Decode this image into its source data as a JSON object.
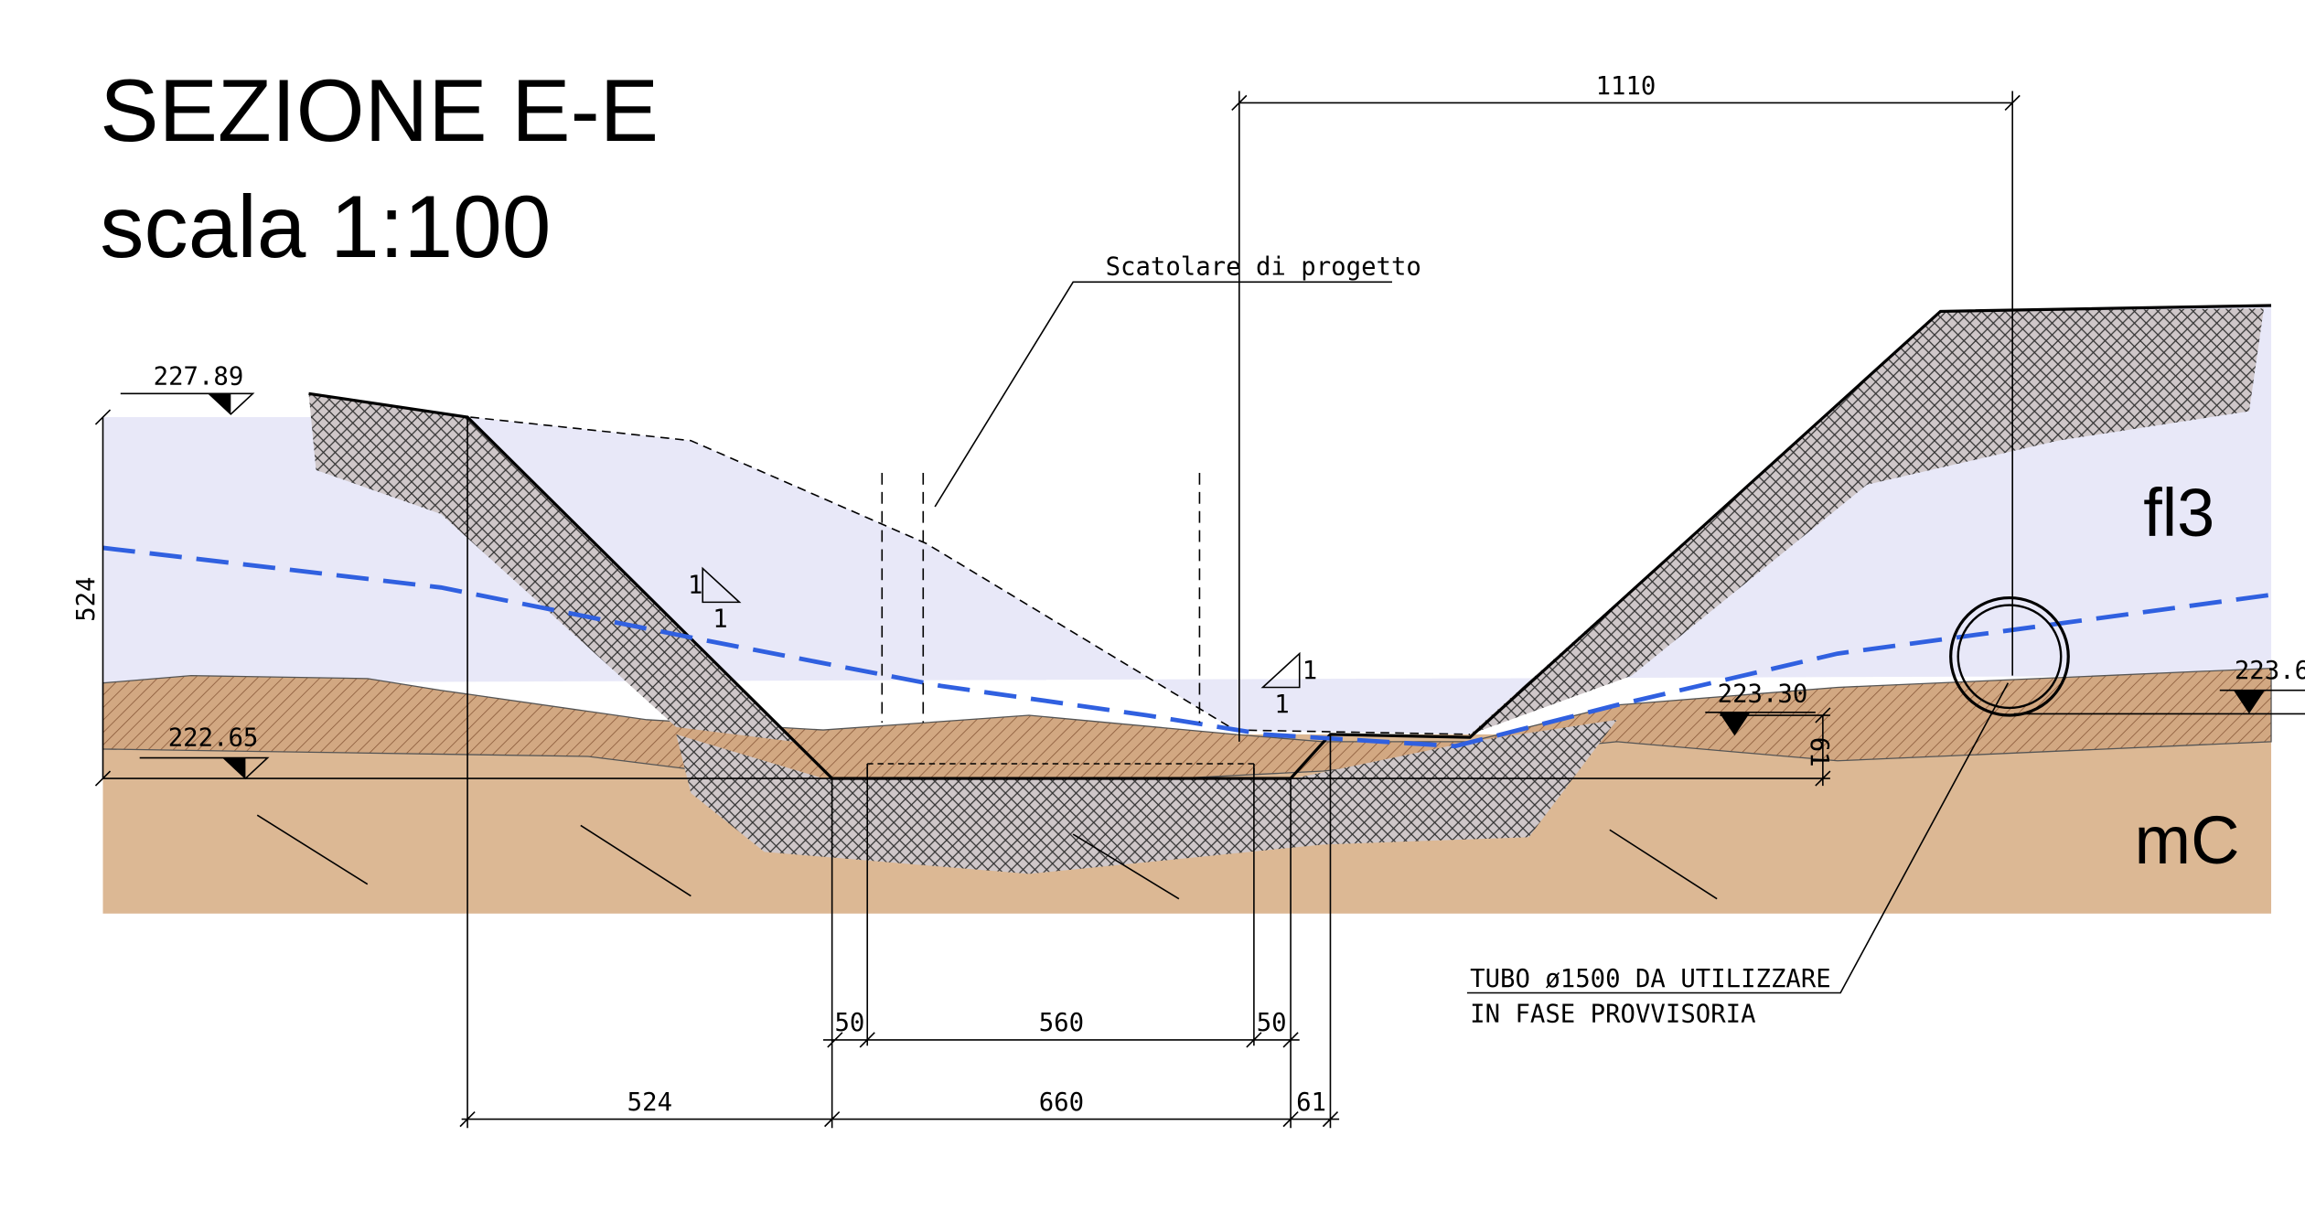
{
  "header": {
    "title": "SEZIONE E-E",
    "scale": "scala 1:100"
  },
  "soils": {
    "upper": "fl3",
    "lower": "mC"
  },
  "labels": {
    "box": "Scatolare di progetto",
    "pipe_line1": "TUBO ø1500 DA UTILIZZARE",
    "pipe_line2": "IN FASE PROVVISORIA"
  },
  "elevations": [
    "227.89",
    "222.65",
    "223.30",
    "223.6"
  ],
  "slopes": [
    {
      "rise": "1",
      "run": "1"
    },
    {
      "rise": "1",
      "run": "1"
    }
  ],
  "dimensions": {
    "top": "1110",
    "left_height": "524",
    "bottom_left": "524",
    "inner": "560",
    "wall_left": "50",
    "wall_right": "50",
    "outer": "660",
    "right": "61",
    "right_height": "61"
  }
}
